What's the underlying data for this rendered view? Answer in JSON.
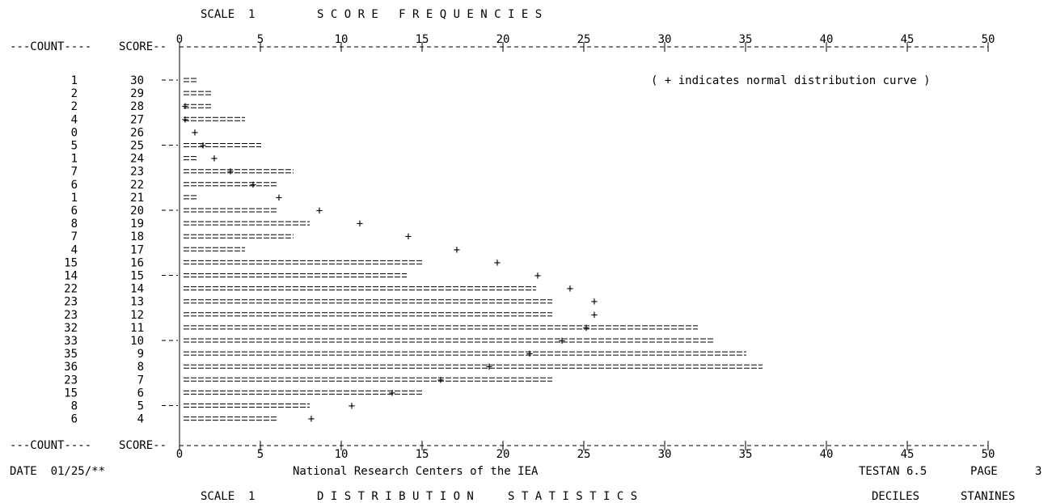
{
  "header": {
    "scale_label": "SCALE  1",
    "title": "S C O R E   F R E Q U E N C I E S"
  },
  "chart_data": {
    "type": "bar",
    "xlim": [
      0,
      50
    ],
    "x_ticks": [
      0,
      5,
      10,
      15,
      20,
      25,
      30,
      35,
      40,
      45,
      50
    ],
    "column_headers": {
      "count": "---COUNT----",
      "score": "SCORE--"
    },
    "legend_note": "( + indicates normal distribution curve )",
    "rows": [
      {
        "score": 30,
        "count": 1,
        "normal": null
      },
      {
        "score": 29,
        "count": 2,
        "normal": null
      },
      {
        "score": 28,
        "count": 2,
        "normal": 0.3
      },
      {
        "score": 27,
        "count": 4,
        "normal": 0.3
      },
      {
        "score": 26,
        "count": 0,
        "normal": 0.9
      },
      {
        "score": 25,
        "count": 5,
        "normal": 1.4
      },
      {
        "score": 24,
        "count": 1,
        "normal": 2.1
      },
      {
        "score": 23,
        "count": 7,
        "normal": 3.1
      },
      {
        "score": 22,
        "count": 6,
        "normal": 4.5
      },
      {
        "score": 21,
        "count": 1,
        "normal": 6.1
      },
      {
        "score": 20,
        "count": 6,
        "normal": 8.6
      },
      {
        "score": 19,
        "count": 8,
        "normal": 11.1
      },
      {
        "score": 18,
        "count": 7,
        "normal": 14.1
      },
      {
        "score": 17,
        "count": 4,
        "normal": 17.1
      },
      {
        "score": 16,
        "count": 15,
        "normal": 19.6
      },
      {
        "score": 15,
        "count": 14,
        "normal": 22.1
      },
      {
        "score": 14,
        "count": 22,
        "normal": 24.1
      },
      {
        "score": 13,
        "count": 23,
        "normal": 25.6
      },
      {
        "score": 12,
        "count": 23,
        "normal": 25.6
      },
      {
        "score": 11,
        "count": 32,
        "normal": 25.1
      },
      {
        "score": 10,
        "count": 33,
        "normal": 23.6
      },
      {
        "score": 9,
        "count": 35,
        "normal": 21.6
      },
      {
        "score": 8,
        "count": 36,
        "normal": 19.1
      },
      {
        "score": 7,
        "count": 23,
        "normal": 16.1
      },
      {
        "score": 6,
        "count": 15,
        "normal": 13.1
      },
      {
        "score": 5,
        "count": 8,
        "normal": 10.6
      },
      {
        "score": 4,
        "count": 6,
        "normal": 8.1
      }
    ],
    "row_ticks": [
      30,
      25,
      20,
      15,
      10,
      5
    ]
  },
  "footer": {
    "date": "DATE  01/25/**",
    "center": "National Research Centers of the IEA",
    "program": "TESTAN 6.5",
    "page_label": "PAGE",
    "page_number": "3"
  },
  "next_section": {
    "scale_label": "SCALE  1",
    "title": "D I S T R I B U T I O N     S T A T I S T I C S",
    "deciles": "DECILES",
    "stanines": "STANINES"
  }
}
